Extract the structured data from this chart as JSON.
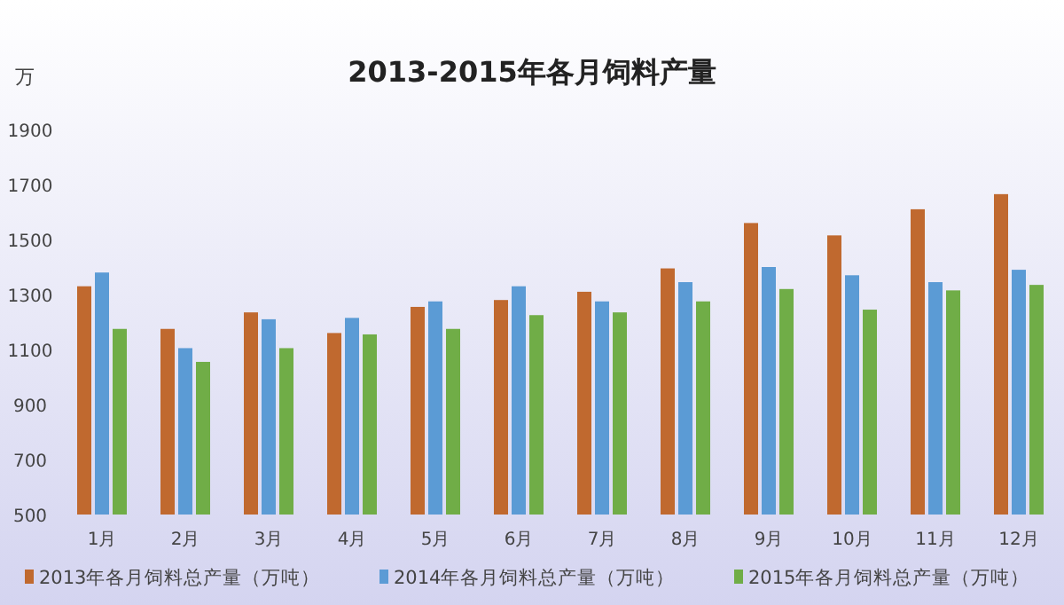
{
  "chart_data": {
    "type": "bar",
    "title": "2013-2015年各月饲料产量",
    "ylabel": "万",
    "categories": [
      "1月",
      "2月",
      "3月",
      "4月",
      "5月",
      "6月",
      "7月",
      "8月",
      "9月",
      "10月",
      "11月",
      "12月"
    ],
    "series": [
      {
        "name": "2013年各月饲料总产量（万吨）",
        "color": "#c0692f",
        "values": [
          1330,
          1175,
          1235,
          1160,
          1255,
          1280,
          1310,
          1395,
          1560,
          1515,
          1610,
          1665
        ]
      },
      {
        "name": "2014年各月饲料总产量（万吨）",
        "color": "#5b9bd5",
        "values": [
          1380,
          1105,
          1210,
          1215,
          1275,
          1330,
          1275,
          1345,
          1400,
          1370,
          1345,
          1390
        ]
      },
      {
        "name": "2015年各月饲料总产量（万吨）",
        "color": "#70ad47",
        "values": [
          1175,
          1055,
          1105,
          1155,
          1175,
          1225,
          1235,
          1275,
          1320,
          1245,
          1315,
          1335
        ]
      }
    ],
    "ylim": [
      500,
      1900
    ],
    "yticks": [
      500,
      700,
      900,
      1100,
      1300,
      1500,
      1700,
      1900
    ],
    "grid": false,
    "legend": "bottom"
  }
}
